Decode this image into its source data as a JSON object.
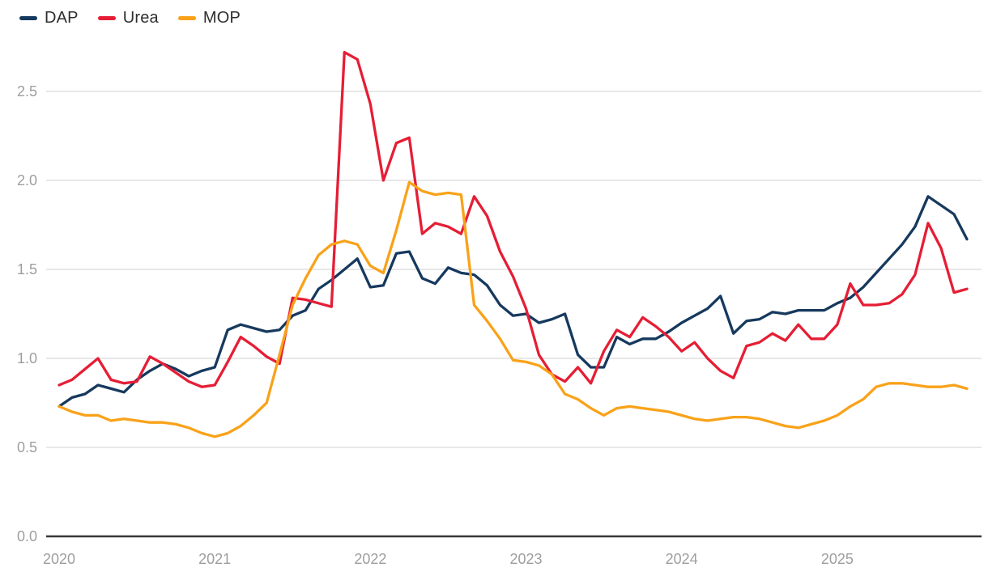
{
  "legend": {
    "items": [
      {
        "label": "DAP",
        "color": "#16395e"
      },
      {
        "label": "Urea",
        "color": "#e51e35"
      },
      {
        "label": "MOP",
        "color": "#f9a219"
      }
    ]
  },
  "chart_data": {
    "type": "line",
    "title": "",
    "xlabel": "",
    "ylabel": "",
    "x_unit": "month",
    "x_start": "2020-01",
    "x_end": "2025-11",
    "x_tick_labels": [
      "2020",
      "2021",
      "2022",
      "2023",
      "2024",
      "2025"
    ],
    "y_ticks": [
      0.0,
      0.5,
      1.0,
      1.5,
      2.0,
      2.5
    ],
    "ylim": [
      0.0,
      2.8
    ],
    "grid": "horizontal",
    "legend_position": "top-left",
    "style": {
      "gridline_color": "#e8e8e8",
      "axis_line_color": "#373737",
      "tick_label_color": "#9e9e9e",
      "background": "#ffffff",
      "line_width": 3.3
    },
    "series": [
      {
        "name": "DAP",
        "color": "#16395e",
        "values": [
          0.73,
          0.78,
          0.8,
          0.85,
          0.83,
          0.81,
          0.88,
          0.93,
          0.97,
          0.94,
          0.9,
          0.93,
          0.95,
          1.16,
          1.19,
          1.17,
          1.15,
          1.16,
          1.24,
          1.27,
          1.39,
          1.44,
          1.5,
          1.56,
          1.4,
          1.41,
          1.59,
          1.6,
          1.45,
          1.42,
          1.51,
          1.48,
          1.47,
          1.41,
          1.3,
          1.24,
          1.25,
          1.2,
          1.22,
          1.25,
          1.02,
          0.95,
          0.95,
          1.12,
          1.08,
          1.11,
          1.11,
          1.15,
          1.2,
          1.24,
          1.28,
          1.35,
          1.14,
          1.21,
          1.22,
          1.26,
          1.25,
          1.27,
          1.27,
          1.27,
          1.31,
          1.34,
          1.4,
          1.48,
          1.56,
          1.64,
          1.74,
          1.91,
          1.86,
          1.81,
          1.67
        ]
      },
      {
        "name": "Urea",
        "color": "#e51e35",
        "values": [
          0.85,
          0.88,
          0.94,
          1.0,
          0.88,
          0.86,
          0.87,
          1.01,
          0.97,
          0.92,
          0.87,
          0.84,
          0.85,
          0.98,
          1.12,
          1.07,
          1.01,
          0.97,
          1.34,
          1.33,
          1.31,
          1.29,
          2.72,
          2.68,
          2.43,
          2.0,
          2.21,
          2.24,
          1.7,
          1.76,
          1.74,
          1.7,
          1.91,
          1.8,
          1.6,
          1.46,
          1.28,
          1.02,
          0.91,
          0.87,
          0.95,
          0.86,
          1.04,
          1.16,
          1.12,
          1.23,
          1.18,
          1.12,
          1.04,
          1.09,
          1.0,
          0.93,
          0.89,
          1.07,
          1.09,
          1.14,
          1.1,
          1.19,
          1.11,
          1.11,
          1.19,
          1.42,
          1.3,
          1.3,
          1.31,
          1.36,
          1.47,
          1.76,
          1.62,
          1.37,
          1.39
        ]
      },
      {
        "name": "MOP",
        "color": "#f9a219",
        "values": [
          0.73,
          0.7,
          0.68,
          0.68,
          0.65,
          0.66,
          0.65,
          0.64,
          0.64,
          0.63,
          0.61,
          0.58,
          0.56,
          0.58,
          0.62,
          0.68,
          0.75,
          1.02,
          1.3,
          1.45,
          1.58,
          1.64,
          1.66,
          1.64,
          1.52,
          1.48,
          1.72,
          1.99,
          1.94,
          1.92,
          1.93,
          1.92,
          1.3,
          1.21,
          1.11,
          0.99,
          0.98,
          0.96,
          0.91,
          0.8,
          0.77,
          0.72,
          0.68,
          0.72,
          0.73,
          0.72,
          0.71,
          0.7,
          0.68,
          0.66,
          0.65,
          0.66,
          0.67,
          0.67,
          0.66,
          0.64,
          0.62,
          0.61,
          0.63,
          0.65,
          0.68,
          0.73,
          0.77,
          0.84,
          0.86,
          0.86,
          0.85,
          0.84,
          0.84,
          0.85,
          0.83
        ]
      }
    ]
  }
}
